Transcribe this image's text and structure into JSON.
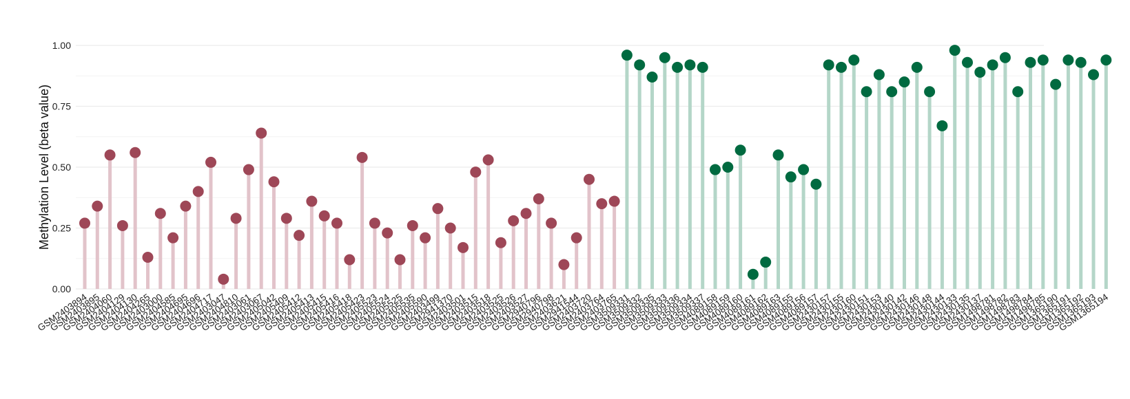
{
  "chart_data": {
    "type": "lollipop",
    "ylabel": "Methylation Level (beta value)",
    "ylim": [
      0,
      1
    ],
    "yticks": [
      "0.00",
      "0.25",
      "0.50",
      "0.75",
      "1.00"
    ],
    "grid": true,
    "legend": "none",
    "colors": {
      "group1_point": "#9e4757",
      "group1_stem": "#e2c3ca",
      "group2_point": "#006a40",
      "group2_stem": "#b4d6c8",
      "grid": "#ececec"
    },
    "samples": [
      {
        "label": "GSM2403894",
        "value": 0.27,
        "group": 1
      },
      {
        "label": "GSM2403895",
        "value": 0.34,
        "group": 1
      },
      {
        "label": "GSM2404060",
        "value": 0.55,
        "group": 1
      },
      {
        "label": "GSM2404129",
        "value": 0.26,
        "group": 1
      },
      {
        "label": "GSM2404130",
        "value": 0.56,
        "group": 1
      },
      {
        "label": "GSM2404265",
        "value": 0.13,
        "group": 1
      },
      {
        "label": "GSM2403000",
        "value": 0.31,
        "group": 1
      },
      {
        "label": "GSM2404585",
        "value": 0.21,
        "group": 1
      },
      {
        "label": "GSM2404695",
        "value": 0.34,
        "group": 1
      },
      {
        "label": "GSM2404696",
        "value": 0.4,
        "group": 1
      },
      {
        "label": "GSM2404717",
        "value": 0.52,
        "group": 1
      },
      {
        "label": "GSM2403047",
        "value": 0.04,
        "group": 1
      },
      {
        "label": "GSM2404810",
        "value": 0.29,
        "group": 1
      },
      {
        "label": "GSM2403061",
        "value": 0.49,
        "group": 1
      },
      {
        "label": "GSM2403067",
        "value": 0.64,
        "group": 1
      },
      {
        "label": "GSM2405042",
        "value": 0.44,
        "group": 1
      },
      {
        "label": "GSM2405409",
        "value": 0.29,
        "group": 1
      },
      {
        "label": "GSM2405412",
        "value": 0.22,
        "group": 1
      },
      {
        "label": "GSM2405413",
        "value": 0.36,
        "group": 1
      },
      {
        "label": "GSM2405415",
        "value": 0.3,
        "group": 1
      },
      {
        "label": "GSM2405416",
        "value": 0.27,
        "group": 1
      },
      {
        "label": "GSM2405418",
        "value": 0.12,
        "group": 1
      },
      {
        "label": "GSM2405423",
        "value": 0.54,
        "group": 1
      },
      {
        "label": "GSM2405523",
        "value": 0.27,
        "group": 1
      },
      {
        "label": "GSM2405524",
        "value": 0.23,
        "group": 1
      },
      {
        "label": "GSM2405525",
        "value": 0.12,
        "group": 1
      },
      {
        "label": "GSM2405535",
        "value": 0.26,
        "group": 1
      },
      {
        "label": "GSM2405590",
        "value": 0.21,
        "group": 1
      },
      {
        "label": "GSM2403499",
        "value": 0.33,
        "group": 1
      },
      {
        "label": "GSM2941370",
        "value": 0.25,
        "group": 1
      },
      {
        "label": "GSM2403501",
        "value": 0.17,
        "group": 1
      },
      {
        "label": "GSM2403515",
        "value": 0.48,
        "group": 1
      },
      {
        "label": "GSM2403518",
        "value": 0.53,
        "group": 1
      },
      {
        "label": "GSM2403525",
        "value": 0.19,
        "group": 1
      },
      {
        "label": "GSM2403526",
        "value": 0.28,
        "group": 1
      },
      {
        "label": "GSM2403527",
        "value": 0.31,
        "group": 1
      },
      {
        "label": "GSM2940796",
        "value": 0.37,
        "group": 1
      },
      {
        "label": "GSM2940798",
        "value": 0.27,
        "group": 1
      },
      {
        "label": "GSM2403621",
        "value": 0.1,
        "group": 1
      },
      {
        "label": "GSM2941544",
        "value": 0.21,
        "group": 1
      },
      {
        "label": "GSM2403720",
        "value": 0.45,
        "group": 1
      },
      {
        "label": "GSM2403764",
        "value": 0.35,
        "group": 1
      },
      {
        "label": "GSM2403765",
        "value": 0.36,
        "group": 1
      },
      {
        "label": "GSM3509331",
        "value": 0.96,
        "group": 2
      },
      {
        "label": "GSM3509332",
        "value": 0.92,
        "group": 2
      },
      {
        "label": "GSM3509335",
        "value": 0.87,
        "group": 2
      },
      {
        "label": "GSM3509333",
        "value": 0.95,
        "group": 2
      },
      {
        "label": "GSM3509336",
        "value": 0.91,
        "group": 2
      },
      {
        "label": "GSM3509334",
        "value": 0.92,
        "group": 2
      },
      {
        "label": "GSM3509337",
        "value": 0.91,
        "group": 2
      },
      {
        "label": "GSM4089158",
        "value": 0.49,
        "group": 2
      },
      {
        "label": "GSM4089159",
        "value": 0.5,
        "group": 2
      },
      {
        "label": "GSM4089160",
        "value": 0.57,
        "group": 2
      },
      {
        "label": "GSM4089161",
        "value": 0.06,
        "group": 2
      },
      {
        "label": "GSM4089162",
        "value": 0.11,
        "group": 2
      },
      {
        "label": "GSM4089163",
        "value": 0.55,
        "group": 2
      },
      {
        "label": "GSM4089155",
        "value": 0.46,
        "group": 2
      },
      {
        "label": "GSM4089156",
        "value": 0.49,
        "group": 2
      },
      {
        "label": "GSM4089157",
        "value": 0.43,
        "group": 2
      },
      {
        "label": "GSM2430157",
        "value": 0.92,
        "group": 2
      },
      {
        "label": "GSM2430155",
        "value": 0.91,
        "group": 2
      },
      {
        "label": "GSM2430160",
        "value": 0.94,
        "group": 2
      },
      {
        "label": "GSM2430151",
        "value": 0.81,
        "group": 2
      },
      {
        "label": "GSM2430153",
        "value": 0.88,
        "group": 2
      },
      {
        "label": "GSM2430140",
        "value": 0.81,
        "group": 2
      },
      {
        "label": "GSM2430142",
        "value": 0.85,
        "group": 2
      },
      {
        "label": "GSM2430146",
        "value": 0.91,
        "group": 2
      },
      {
        "label": "GSM2430148",
        "value": 0.81,
        "group": 2
      },
      {
        "label": "GSM2430144",
        "value": 0.67,
        "group": 2
      },
      {
        "label": "GSM2430133",
        "value": 0.98,
        "group": 2
      },
      {
        "label": "GSM2430135",
        "value": 0.93,
        "group": 2
      },
      {
        "label": "GSM2430137",
        "value": 0.89,
        "group": 2
      },
      {
        "label": "GSM1498781",
        "value": 0.92,
        "group": 2
      },
      {
        "label": "GSM1498782",
        "value": 0.95,
        "group": 2
      },
      {
        "label": "GSM1498783",
        "value": 0.81,
        "group": 2
      },
      {
        "label": "GSM1498784",
        "value": 0.93,
        "group": 2
      },
      {
        "label": "GSM1498785",
        "value": 0.94,
        "group": 2
      },
      {
        "label": "GSM1365190",
        "value": 0.84,
        "group": 2
      },
      {
        "label": "GSM1365191",
        "value": 0.94,
        "group": 2
      },
      {
        "label": "GSM1365192",
        "value": 0.93,
        "group": 2
      },
      {
        "label": "GSM1365193",
        "value": 0.88,
        "group": 2
      },
      {
        "label": "GSM1365194",
        "value": 0.94,
        "group": 2
      }
    ]
  }
}
